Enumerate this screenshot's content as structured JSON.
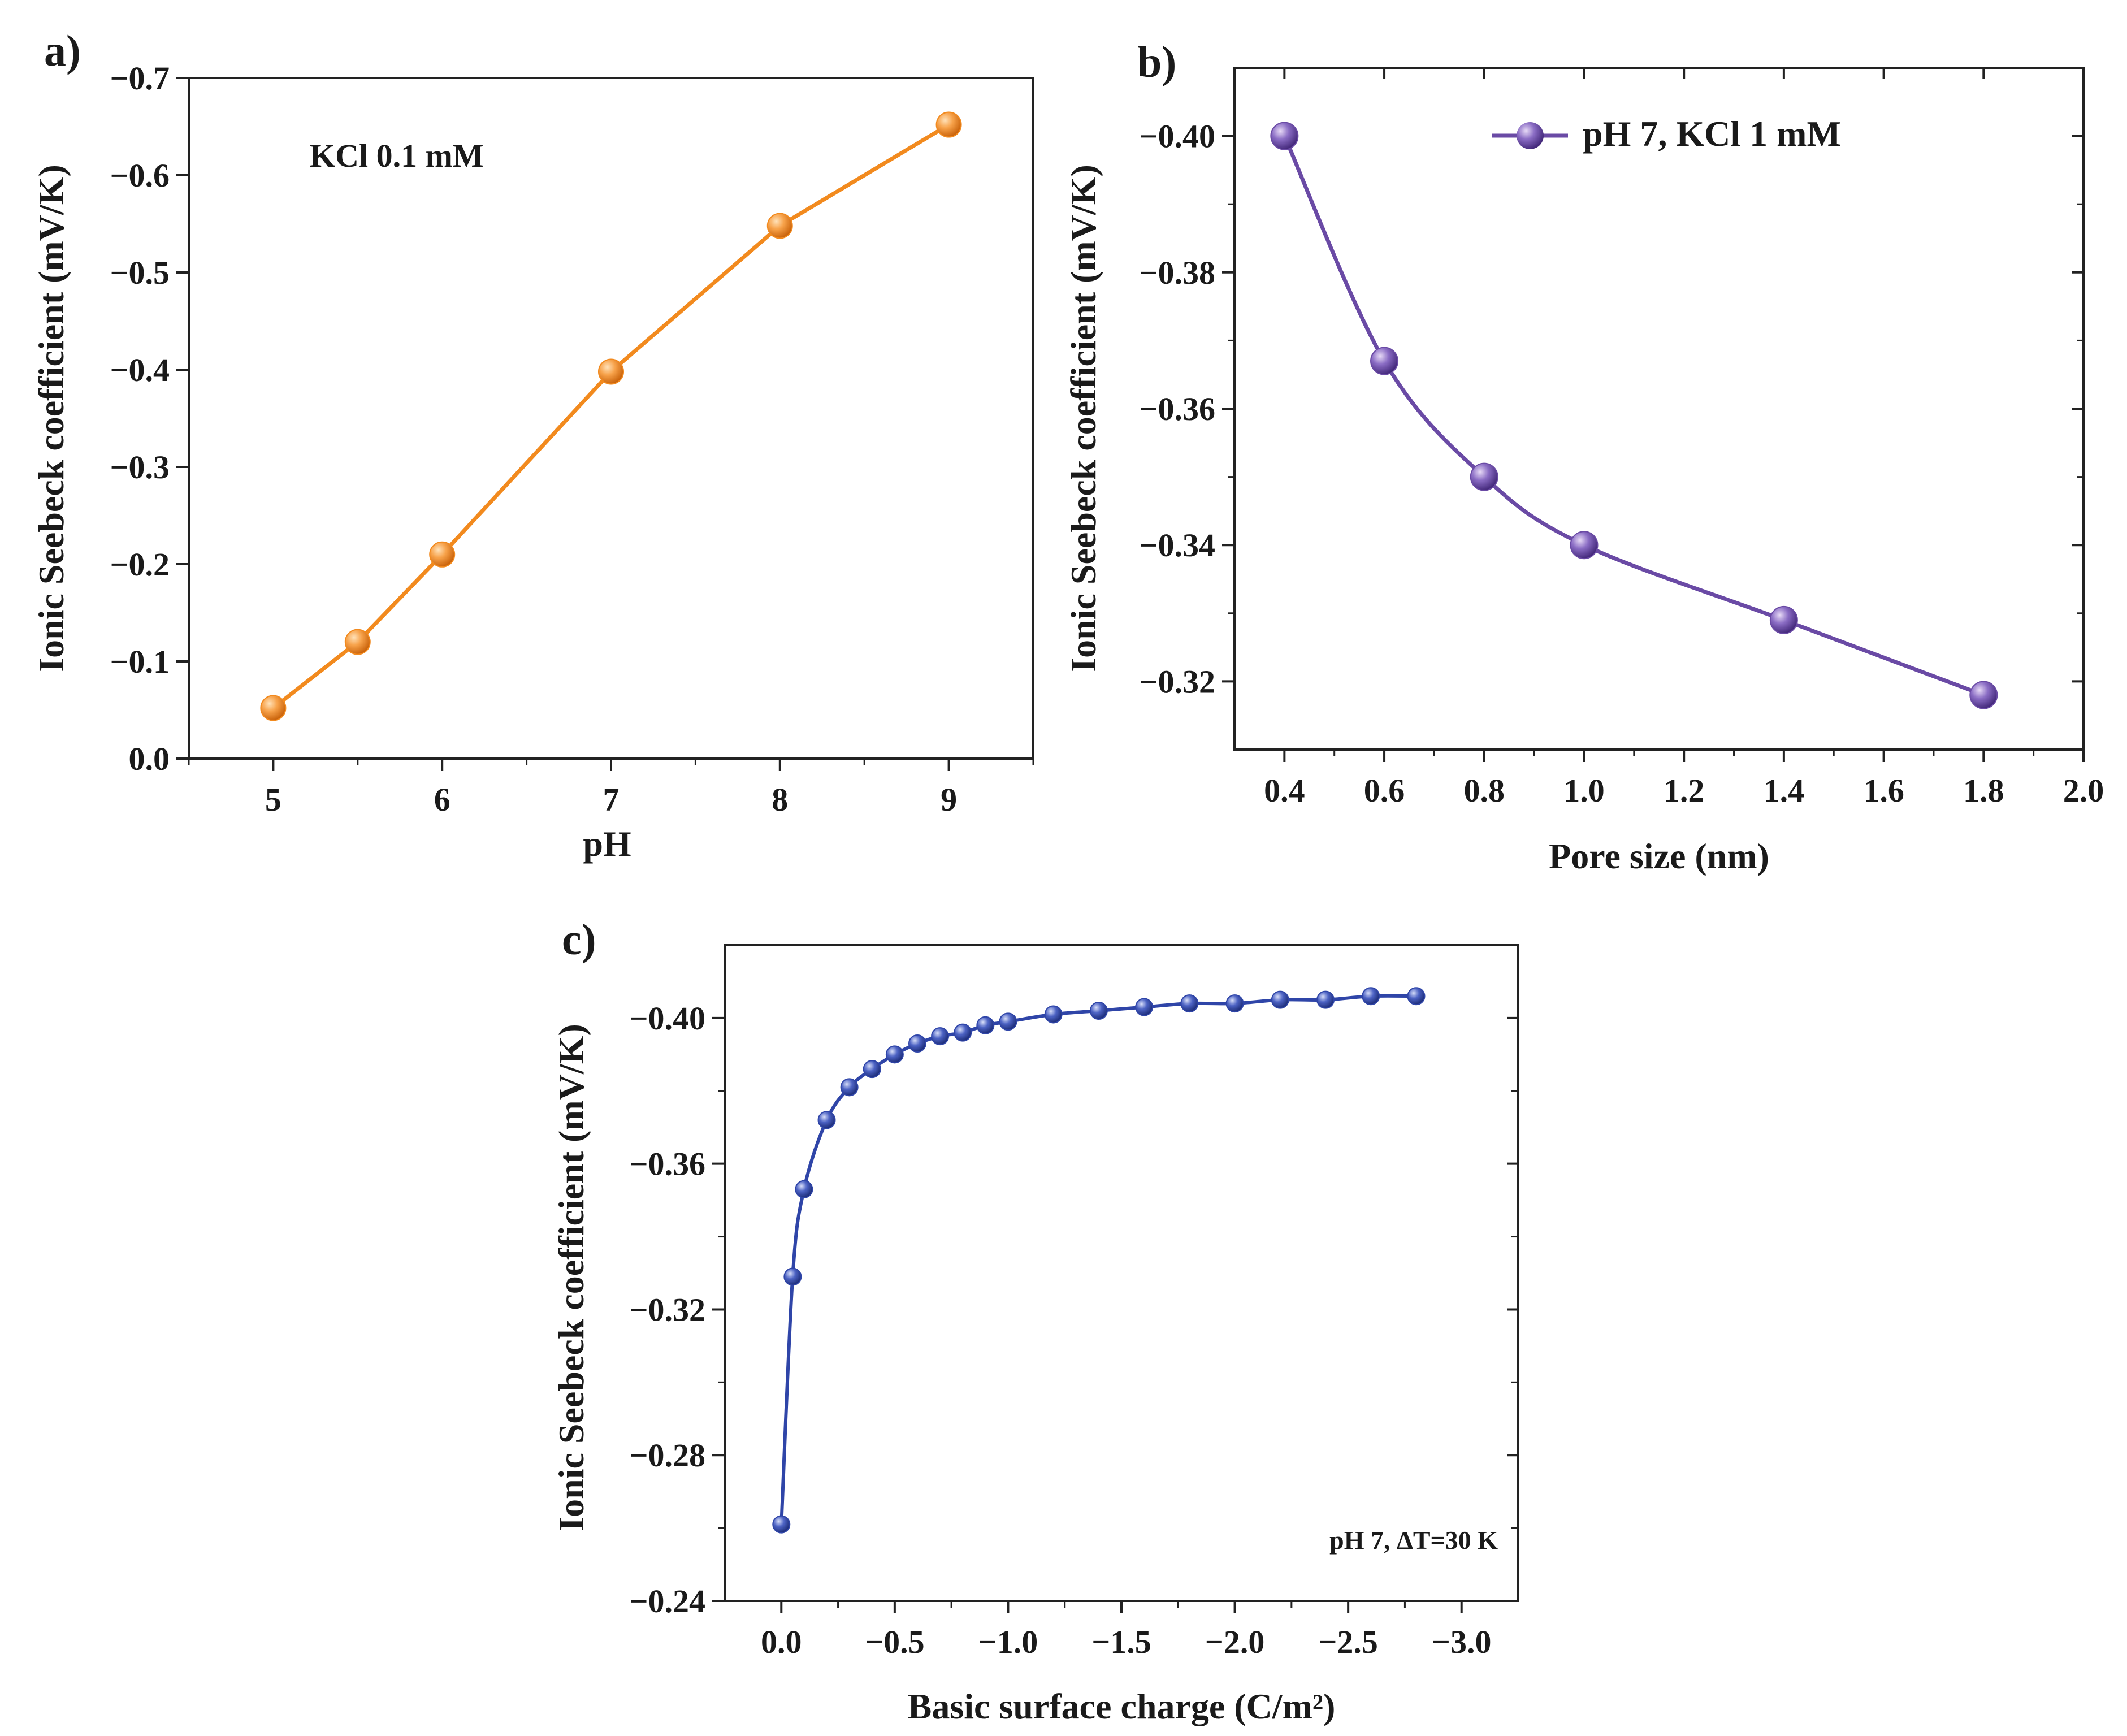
{
  "chart_data": [
    {
      "panel": "a)",
      "type": "line",
      "xlabel": "pH",
      "ylabel": "Ionic Seebeck coefficient (mV/K)",
      "annotation": "KCl 0.1 mM",
      "color": "#F28A1E",
      "xlim": [
        4.5,
        9.5
      ],
      "ylim": [
        0.0,
        -0.7
      ],
      "x_ticks": [
        5,
        6,
        7,
        8,
        9
      ],
      "x_tick_labels": [
        "5",
        "6",
        "7",
        "8",
        "9"
      ],
      "y_ticks": [
        0.0,
        -0.1,
        -0.2,
        -0.3,
        -0.4,
        -0.5,
        -0.6,
        -0.7
      ],
      "y_tick_labels": [
        "0.0",
        "−0.1",
        "−0.2",
        "−0.3",
        "−0.4",
        "−0.5",
        "−0.6",
        "−0.7"
      ],
      "series": [
        {
          "name": "KCl 0.1 mM",
          "x": [
            5,
            5.5,
            6,
            7,
            8,
            9
          ],
          "y": [
            -0.052,
            -0.12,
            -0.21,
            -0.398,
            -0.548,
            -0.652
          ]
        }
      ]
    },
    {
      "panel": "b)",
      "type": "line",
      "xlabel": "Pore size (nm)",
      "ylabel": "Ionic Seebeck coefficient (mV/K)",
      "color": "#6A4AA5",
      "legend_position": "top-right",
      "xlim": [
        0.3,
        2.0
      ],
      "ylim": [
        -0.31,
        -0.41
      ],
      "x_ticks": [
        0.4,
        0.6,
        0.8,
        1.0,
        1.2,
        1.4,
        1.6,
        1.8,
        2.0
      ],
      "x_tick_labels": [
        "0.4",
        "0.6",
        "0.8",
        "1.0",
        "1.2",
        "1.4",
        "1.6",
        "1.8",
        "2.0"
      ],
      "y_ticks": [
        -0.32,
        -0.34,
        -0.36,
        -0.38,
        -0.4
      ],
      "y_tick_labels": [
        "−0.32",
        "−0.34",
        "−0.36",
        "−0.38",
        "−0.40"
      ],
      "series": [
        {
          "name": "pH 7, KCl 1 mM",
          "x": [
            0.4,
            0.6,
            0.8,
            1.0,
            1.4,
            1.8
          ],
          "y": [
            -0.4,
            -0.367,
            -0.35,
            -0.34,
            -0.329,
            -0.318
          ]
        }
      ]
    },
    {
      "panel": "c)",
      "type": "line",
      "xlabel": "Basic surface charge (C/m²)",
      "ylabel": "Ionic Seebeck coefficient (mV/K)",
      "annotation": "pH 7, ΔT=30 K",
      "color": "#2F45A8",
      "xlim": [
        0.25,
        -3.25
      ],
      "ylim": [
        -0.24,
        -0.42
      ],
      "x_ticks": [
        0.0,
        -0.5,
        -1.0,
        -1.5,
        -2.0,
        -2.5,
        -3.0
      ],
      "x_tick_labels": [
        "0.0",
        "−0.5",
        "−1.0",
        "−1.5",
        "−2.0",
        "−2.5",
        "−3.0"
      ],
      "y_ticks": [
        -0.24,
        -0.28,
        -0.32,
        -0.36,
        -0.4
      ],
      "y_tick_labels": [
        "−0.24",
        "−0.28",
        "−0.32",
        "−0.36",
        "−0.40"
      ],
      "series": [
        {
          "name": "pH 7, ΔT=30 K",
          "x": [
            0.0,
            -0.05,
            -0.1,
            -0.2,
            -0.3,
            -0.4,
            -0.5,
            -0.6,
            -0.7,
            -0.8,
            -0.9,
            -1.0,
            -1.2,
            -1.4,
            -1.6,
            -1.8,
            -2.0,
            -2.2,
            -2.4,
            -2.6,
            -2.8
          ],
          "y": [
            -0.261,
            -0.329,
            -0.353,
            -0.372,
            -0.381,
            -0.386,
            -0.39,
            -0.393,
            -0.395,
            -0.396,
            -0.398,
            -0.399,
            -0.401,
            -0.402,
            -0.403,
            -0.404,
            -0.404,
            -0.405,
            -0.405,
            -0.406,
            -0.406
          ]
        }
      ]
    }
  ]
}
